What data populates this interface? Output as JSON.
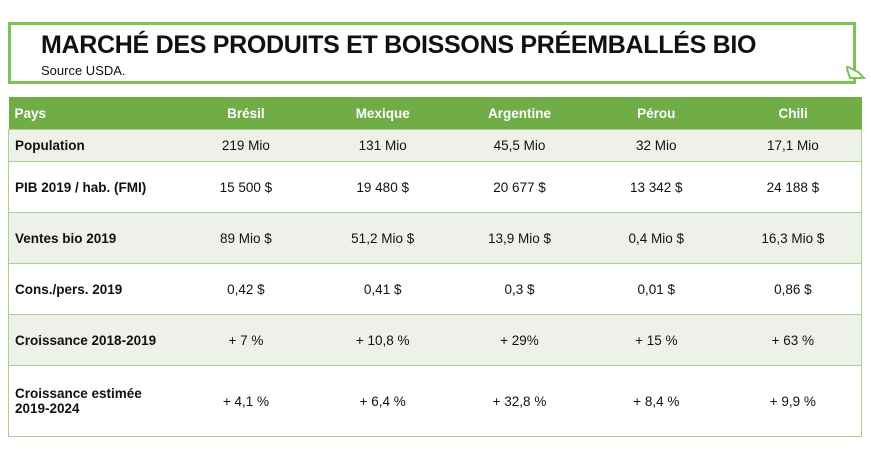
{
  "header": {
    "title": "MARCHÉ DES PRODUITS ET BOISSONS PRÉEMBALLÉS BIO",
    "source": "Source USDA."
  },
  "table": {
    "header": [
      "Pays",
      "Brésil",
      "Mexique",
      "Argentine",
      "Pérou",
      "Chili"
    ],
    "rows": [
      [
        "Population",
        "219 Mio",
        "131 Mio",
        "45,5 Mio",
        "32 Mio",
        "17,1 Mio"
      ],
      [
        "PIB 2019 / hab. (FMI)",
        "15 500 $",
        "19 480 $",
        "20 677 $",
        "13 342 $",
        "24 188 $"
      ],
      [
        "Ventes bio 2019",
        "89 Mio $",
        "51,2 Mio $",
        "13,9 Mio $",
        "0,4 Mio $",
        "16,3 Mio $"
      ],
      [
        "Cons./pers. 2019",
        "0,42 $",
        "0,41 $",
        "0,3 $",
        "0,01 $",
        "0,86 $"
      ],
      [
        "Croissance 2018-2019",
        "+ 7 %",
        "+ 10,8 %",
        "+ 29%",
        "+ 15 %",
        "+ 63 %"
      ],
      [
        "Croissance estimée 2019-2024",
        "+ 4,1 %",
        "+ 6,4 %",
        "+ 32,8 %",
        "+ 8,4 %",
        "+ 9,9 %"
      ]
    ]
  }
}
